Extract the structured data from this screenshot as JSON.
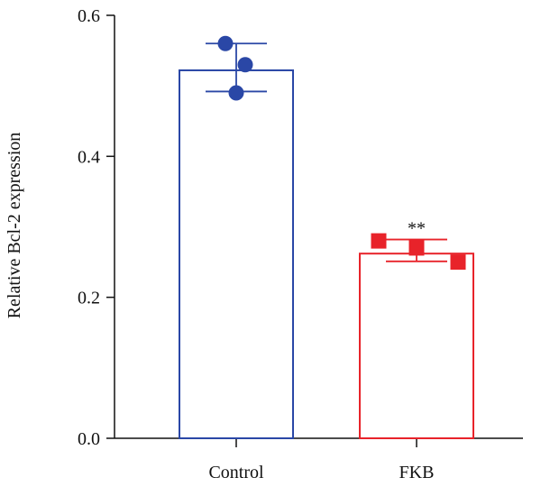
{
  "chart_data": {
    "type": "bar",
    "title": "",
    "xlabel": "",
    "ylabel": "Relative Bcl-2 expression",
    "ylim": [
      0,
      0.6
    ],
    "yticks": [
      0.0,
      0.2,
      0.4,
      0.6
    ],
    "ytick_labels": [
      "0.0",
      "0.2",
      "0.4",
      "0.6"
    ],
    "categories": [
      "Control",
      "FKB"
    ],
    "values": [
      0.522,
      0.262
    ],
    "error": [
      {
        "low": 0.492,
        "high": 0.56
      },
      {
        "low": 0.251,
        "high": 0.282
      }
    ],
    "points": [
      [
        0.56,
        0.53,
        0.49
      ],
      [
        0.28,
        0.27,
        0.25
      ]
    ],
    "markers": [
      "circle",
      "square"
    ],
    "annotations": [
      "",
      "**"
    ],
    "colors": [
      "#2a47a6",
      "#e8232a"
    ],
    "grid": false,
    "legend": "none"
  }
}
